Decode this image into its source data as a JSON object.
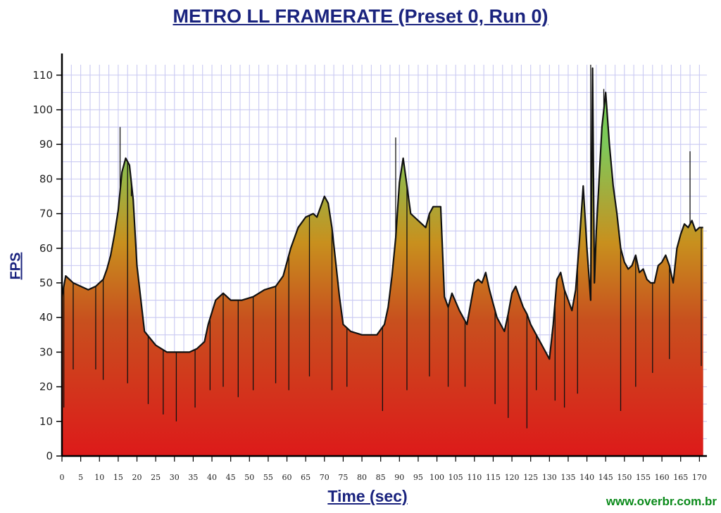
{
  "chart_data": {
    "type": "area",
    "title": "METRO LL FRAMERATE (Preset 0, Run 0)",
    "xlabel": "Time (sec)",
    "ylabel": "FPS",
    "xlim": [
      0,
      172
    ],
    "ylim": [
      0,
      113
    ],
    "xticks": [
      0,
      5,
      10,
      15,
      20,
      25,
      30,
      35,
      40,
      45,
      50,
      55,
      60,
      65,
      70,
      75,
      80,
      85,
      90,
      95,
      100,
      105,
      110,
      115,
      120,
      125,
      130,
      135,
      140,
      145,
      150,
      155,
      160,
      165,
      170
    ],
    "yticks": [
      0,
      10,
      20,
      30,
      40,
      50,
      60,
      70,
      80,
      90,
      100,
      110
    ],
    "grid": true,
    "fill_gradient": {
      "low": "#dd1a1a",
      "mid": "#c8901e",
      "high": "#7fc85a"
    },
    "x": [
      0,
      1,
      3,
      5,
      7,
      9,
      11,
      12,
      13,
      14,
      15,
      16,
      17,
      18,
      19,
      20,
      22,
      25,
      28,
      31,
      34,
      36,
      38,
      39,
      41,
      43,
      45,
      48,
      51,
      54,
      57,
      59,
      61,
      63,
      65,
      67,
      68,
      69,
      70,
      71,
      72,
      73,
      74,
      75,
      77,
      80,
      82,
      84,
      86,
      87,
      88,
      89,
      90,
      91,
      92,
      93,
      94,
      95,
      97,
      98,
      99,
      100,
      101,
      102,
      103,
      104,
      106,
      108,
      110,
      111,
      112,
      113,
      114,
      115,
      116,
      117,
      118,
      119,
      120,
      121,
      122,
      123,
      124,
      125,
      126,
      127,
      128,
      129,
      130,
      131,
      132,
      133,
      134,
      135,
      136,
      137,
      138,
      139,
      140,
      141,
      141.5,
      142,
      142.5,
      143,
      144,
      145,
      146,
      147,
      148,
      149,
      150,
      151,
      152,
      153,
      154,
      155,
      156,
      157,
      158,
      159,
      160,
      161,
      162,
      163,
      164,
      165,
      166,
      167,
      168,
      169,
      170,
      171
    ],
    "values": [
      46,
      52,
      50,
      49,
      48,
      49,
      51,
      54,
      58,
      64,
      71,
      82,
      86,
      84,
      74,
      55,
      36,
      32,
      30,
      30,
      30,
      31,
      33,
      38,
      45,
      47,
      45,
      45,
      46,
      48,
      49,
      52,
      60,
      66,
      69,
      70,
      69,
      72,
      75,
      73,
      66,
      56,
      46,
      38,
      36,
      35,
      35,
      35,
      38,
      43,
      52,
      63,
      79,
      86,
      78,
      70,
      69,
      68,
      66,
      70,
      72,
      72,
      72,
      46,
      43,
      47,
      42,
      38,
      50,
      51,
      50,
      53,
      48,
      44,
      40,
      38,
      36,
      41,
      47,
      49,
      46,
      43,
      41,
      38,
      36,
      34,
      32,
      30,
      28,
      38,
      51,
      53,
      48,
      45,
      42,
      48,
      62,
      78,
      60,
      45,
      112,
      50,
      65,
      75,
      95,
      105,
      90,
      78,
      70,
      60,
      56,
      54,
      55,
      58,
      53,
      54,
      51,
      50,
      50,
      55,
      56,
      58,
      55,
      50,
      60,
      64,
      67,
      66,
      68,
      65,
      66,
      66
    ],
    "spikes": [
      [
        0.5,
        14
      ],
      [
        3,
        25
      ],
      [
        9,
        25
      ],
      [
        11,
        22
      ],
      [
        15.5,
        95
      ],
      [
        17.5,
        21
      ],
      [
        18.5,
        75
      ],
      [
        23,
        15
      ],
      [
        27,
        12
      ],
      [
        30.5,
        10
      ],
      [
        35.5,
        14
      ],
      [
        39.5,
        19
      ],
      [
        43,
        20
      ],
      [
        47,
        17
      ],
      [
        51,
        19
      ],
      [
        57,
        21
      ],
      [
        60.5,
        19
      ],
      [
        66,
        23
      ],
      [
        72,
        19
      ],
      [
        76,
        20
      ],
      [
        85.5,
        13
      ],
      [
        89,
        92
      ],
      [
        92,
        19
      ],
      [
        98,
        23
      ],
      [
        103,
        20
      ],
      [
        107.5,
        20
      ],
      [
        115.5,
        15
      ],
      [
        119,
        11
      ],
      [
        124,
        8
      ],
      [
        126.5,
        19
      ],
      [
        131.5,
        16
      ],
      [
        134,
        14
      ],
      [
        137.5,
        18
      ],
      [
        141,
        113
      ],
      [
        144.5,
        106
      ],
      [
        149,
        13
      ],
      [
        153,
        20
      ],
      [
        157.5,
        24
      ],
      [
        162,
        28
      ],
      [
        167.5,
        88
      ],
      [
        170.5,
        26
      ]
    ],
    "watermark": "www.overbr.com.br"
  }
}
